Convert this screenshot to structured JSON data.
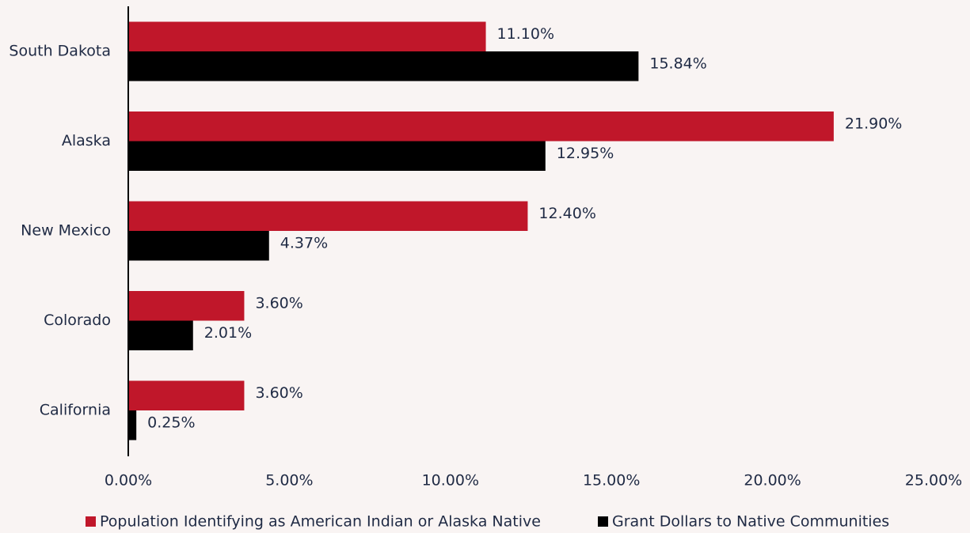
{
  "chart_data": {
    "type": "bar",
    "orientation": "horizontal",
    "categories": [
      "South Dakota",
      "Alaska",
      "New Mexico",
      "Colorado",
      "California"
    ],
    "series": [
      {
        "name": "Population Identifying as American Indian or Alaska Native",
        "color": "#c0172a",
        "values": [
          11.1,
          21.9,
          12.4,
          3.6,
          3.6
        ],
        "value_labels": [
          "11.10%",
          "21.90%",
          "12.40%",
          "3.60%",
          "3.60%"
        ]
      },
      {
        "name": "Grant Dollars to Native Communities",
        "color": "#000000",
        "values": [
          15.84,
          12.95,
          4.37,
          2.01,
          0.25
        ],
        "value_labels": [
          "15.84%",
          "12.95%",
          "4.37%",
          "2.01%",
          "0.25%"
        ]
      }
    ],
    "xlim": [
      0,
      25
    ],
    "xticks": [
      {
        "value": 0,
        "label": "0.00%"
      },
      {
        "value": 5,
        "label": "5.00%"
      },
      {
        "value": 10,
        "label": "10.00%"
      },
      {
        "value": 15,
        "label": "15.00%"
      },
      {
        "value": 20,
        "label": "20.00%"
      },
      {
        "value": 25,
        "label": "25.00%"
      }
    ],
    "legend": "bottom"
  }
}
